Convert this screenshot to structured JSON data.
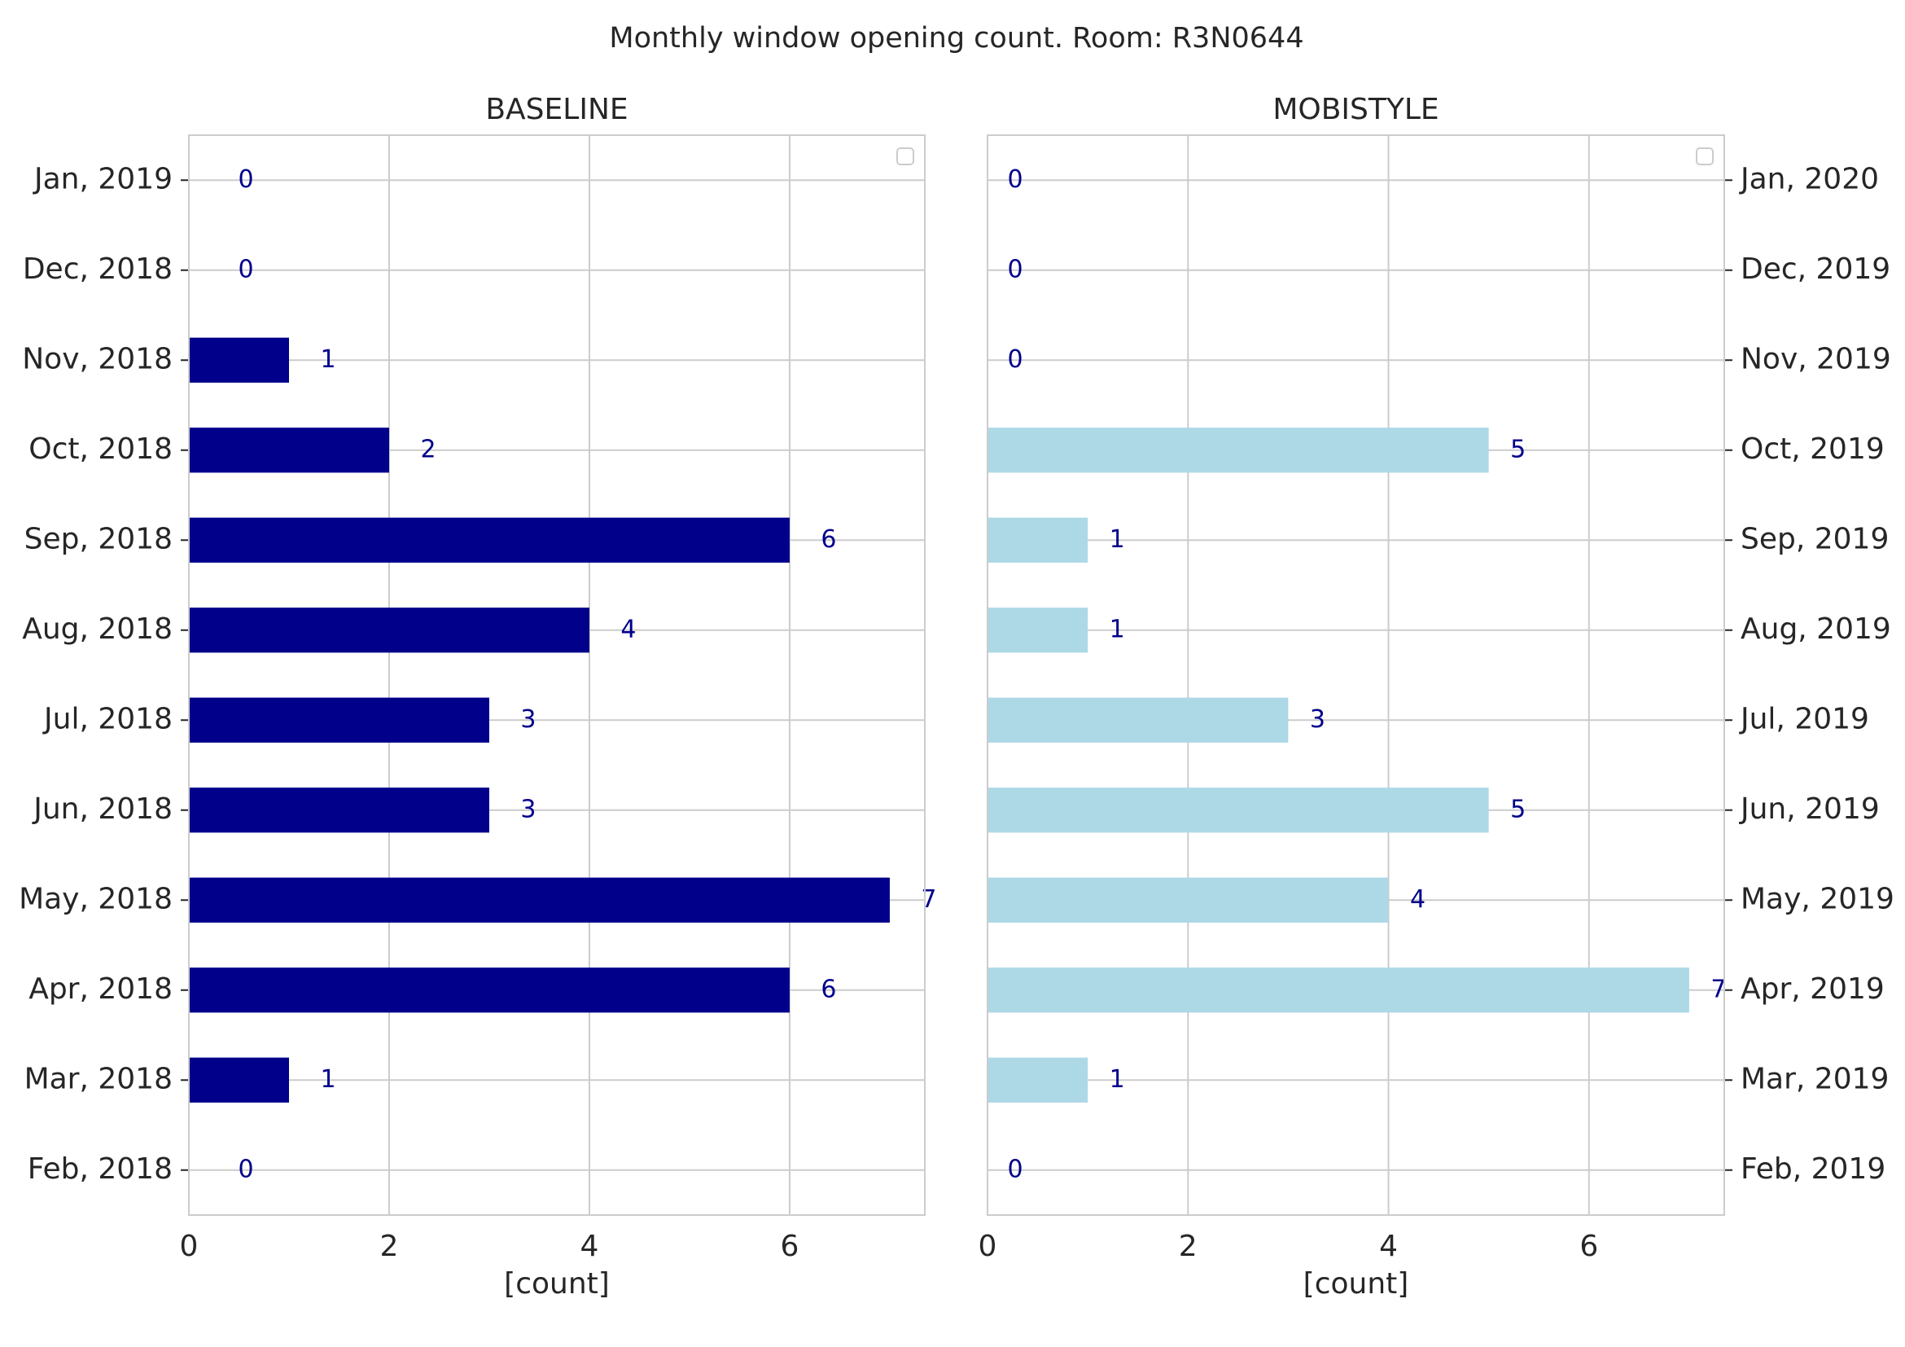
{
  "title": "Monthly window opening count. Room: R3N0644",
  "colors": {
    "baseline": "#00008b",
    "mobistyle": "#add8e6",
    "label": "#00008b",
    "grid": "#cccccc"
  },
  "chart_data": [
    {
      "type": "bar",
      "orientation": "horizontal",
      "title": "BASELINE",
      "xlabel": "[count]",
      "ylabel": "",
      "xlim": [
        0,
        7.35
      ],
      "xticks": [
        0,
        2,
        4,
        6
      ],
      "ytick_side": "left",
      "grid": true,
      "legend": "top-right (empty)",
      "categories": [
        "Feb, 2018",
        "Mar, 2018",
        "Apr, 2018",
        "May, 2018",
        "Jun, 2018",
        "Jul, 2018",
        "Aug, 2018",
        "Sep, 2018",
        "Oct, 2018",
        "Nov, 2018",
        "Dec, 2018",
        "Jan, 2019"
      ],
      "values": [
        0,
        1,
        6,
        7,
        3,
        3,
        4,
        6,
        2,
        1,
        0,
        0
      ],
      "color": "#00008b"
    },
    {
      "type": "bar",
      "orientation": "horizontal",
      "title": "MOBISTYLE",
      "xlabel": "[count]",
      "ylabel": "",
      "xlim": [
        0,
        7.35
      ],
      "xticks": [
        0,
        2,
        4,
        6
      ],
      "ytick_side": "right",
      "grid": true,
      "legend": "top-right (empty)",
      "categories": [
        "Feb, 2019",
        "Mar, 2019",
        "Apr, 2019",
        "May, 2019",
        "Jun, 2019",
        "Jul, 2019",
        "Aug, 2019",
        "Sep, 2019",
        "Oct, 2019",
        "Nov, 2019",
        "Dec, 2019",
        "Jan, 2020"
      ],
      "values": [
        0,
        1,
        7,
        4,
        5,
        3,
        1,
        1,
        5,
        0,
        0,
        0
      ],
      "color": "#add8e6"
    }
  ]
}
